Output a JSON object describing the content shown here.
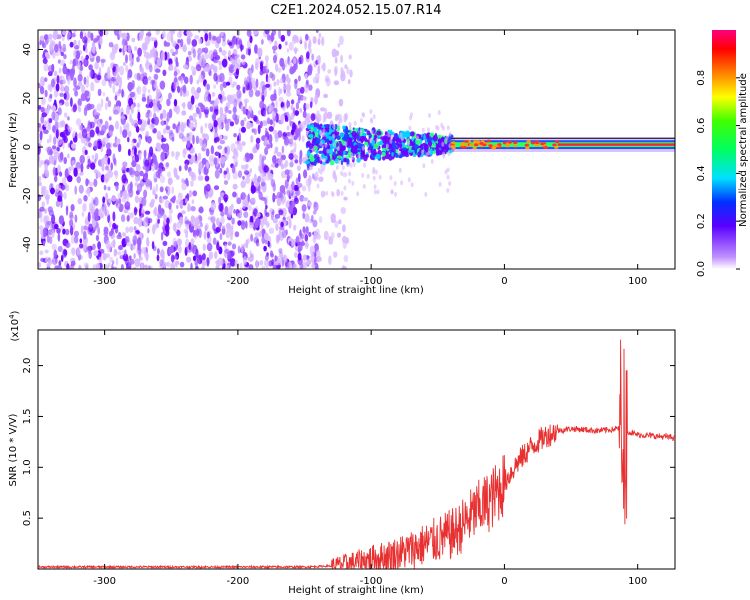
{
  "title": "C2E1.2024.052.15.07.R14",
  "spectrogram": {
    "type": "heatmap",
    "xlabel": "Height of straight line (km)",
    "ylabel": "Frequency (Hz)",
    "xlim": [
      -350,
      128
    ],
    "ylim": [
      -50,
      48
    ],
    "x_ticks": [
      -300,
      -200,
      -100,
      0,
      100
    ],
    "y_ticks": [
      -40,
      -20,
      0,
      20,
      40
    ],
    "noise_region": [
      -350,
      -140
    ],
    "line_region": [
      -140,
      128
    ],
    "line_frequency_hz": 1,
    "colors": {
      "low": "#d8b8ff",
      "mid": "#6a00ff",
      "high": "#ff2030"
    }
  },
  "colorbar": {
    "label": "Normalized spectral amplitude",
    "range": [
      0,
      1
    ],
    "ticks": [
      0.0,
      0.2,
      0.4,
      0.6,
      0.8
    ],
    "tick_labels": [
      "0.0",
      "0.2",
      "0.4",
      "0.6",
      "0.8"
    ]
  },
  "chart_data": {
    "type": "line",
    "title": "C2E1.2024.052.15.07.R14",
    "xlabel": "Height of straight line (km)",
    "ylabel": "SNR (10 * V/V)",
    "scale_label": "(x10",
    "scale_exponent": "4",
    "scale_close": ")",
    "xlim": [
      -350,
      128
    ],
    "ylim": [
      0,
      2.35
    ],
    "x_ticks": [
      -300,
      -200,
      -100,
      0,
      100
    ],
    "y_ticks": [
      0.5,
      1.0,
      1.5,
      2.0
    ],
    "y_tick_labels": [
      "0.5",
      "1.0",
      "1.5",
      "2.0"
    ],
    "color": "#e83030",
    "series": [
      {
        "x": [
          -350,
          -300,
          -250,
          -200,
          -150,
          -130,
          -120,
          -110,
          -100,
          -90,
          -80,
          -70,
          -60,
          -50,
          -40,
          -35,
          -30,
          -25,
          -20,
          -15,
          -10,
          -5,
          0,
          5,
          10,
          20,
          30,
          40,
          50,
          60,
          70,
          80,
          85,
          88,
          90,
          92,
          95,
          100,
          110,
          120,
          128
        ],
        "y": [
          0.02,
          0.02,
          0.02,
          0.02,
          0.02,
          0.03,
          0.05,
          0.07,
          0.1,
          0.12,
          0.15,
          0.19,
          0.24,
          0.29,
          0.34,
          0.38,
          0.45,
          0.52,
          0.58,
          0.63,
          0.68,
          0.76,
          0.85,
          0.95,
          1.05,
          1.2,
          1.3,
          1.36,
          1.38,
          1.37,
          1.36,
          1.37,
          1.38,
          1.4,
          1.38,
          1.36,
          1.34,
          1.32,
          1.31,
          1.3,
          1.29
        ]
      }
    ]
  }
}
